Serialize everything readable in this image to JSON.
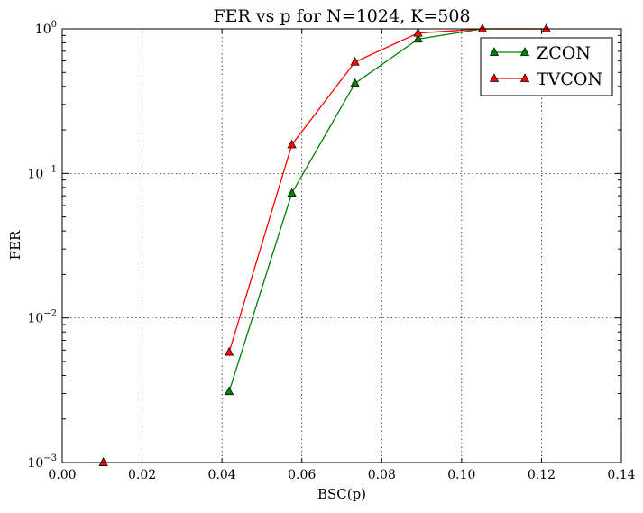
{
  "chart_data": {
    "type": "line",
    "title": "FER vs p for N=1024, K=508",
    "xlabel": "BSC(p)",
    "ylabel": "FER",
    "xlim": [
      0.0,
      0.14
    ],
    "ylim": [
      0.001,
      1.0
    ],
    "yscale": "log",
    "grid": true,
    "legend_position": "top-right",
    "xticks": [
      "0.00",
      "0.02",
      "0.04",
      "0.06",
      "0.08",
      "0.10",
      "0.12",
      "0.14"
    ],
    "yticks": [
      {
        "base": "10",
        "exp": "0",
        "value": 1.0
      },
      {
        "base": "10",
        "exp": "−1",
        "value": 0.1
      },
      {
        "base": "10",
        "exp": "−2",
        "value": 0.01
      },
      {
        "base": "10",
        "exp": "−3",
        "value": 0.001
      }
    ],
    "series": [
      {
        "name": "ZCON",
        "color": "#008000",
        "marker": "triangle-up",
        "x": [
          0.0103,
          0.0418,
          0.0575,
          0.0733,
          0.0891,
          0.1052,
          0.1212
        ],
        "y": [
          0.001,
          0.0031,
          0.073,
          0.42,
          0.85,
          1.0,
          1.0
        ]
      },
      {
        "name": "TVCON",
        "color": "#ff0000",
        "marker": "triangle-up",
        "x": [
          0.0103,
          0.0418,
          0.0575,
          0.0733,
          0.0891,
          0.1052,
          0.1212
        ],
        "y": [
          0.001,
          0.0058,
          0.158,
          0.59,
          0.935,
          1.0,
          1.0
        ]
      }
    ]
  }
}
